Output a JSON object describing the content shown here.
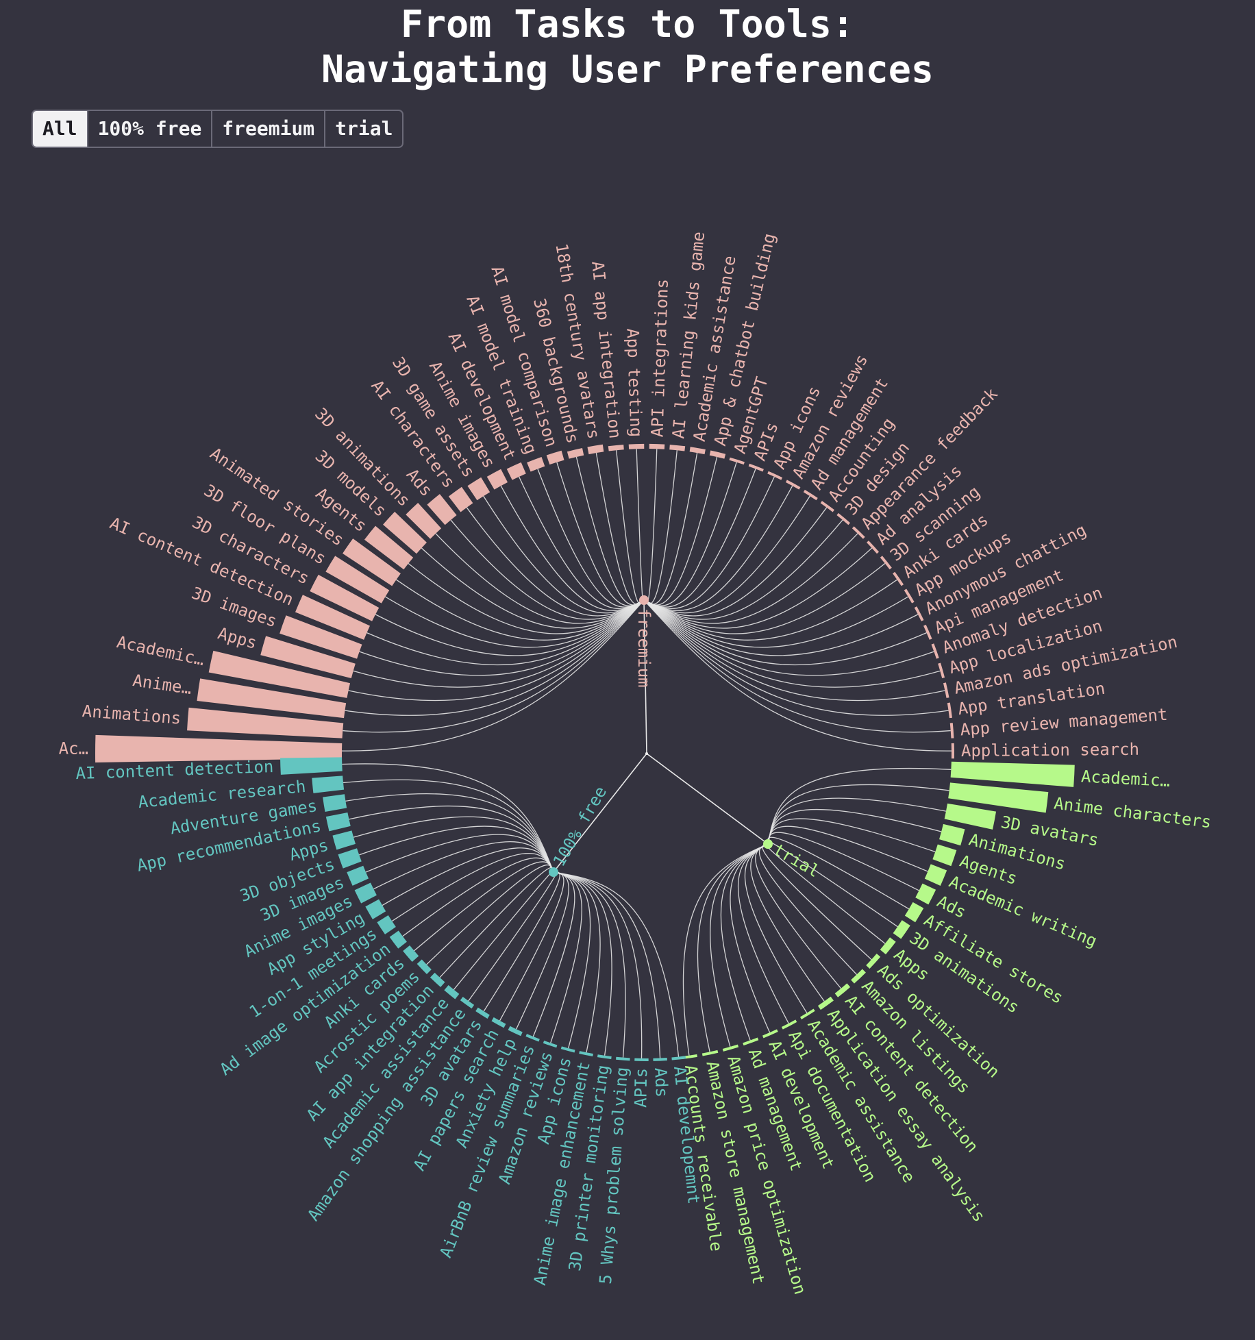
{
  "title_lines": [
    "From Tasks to Tools:",
    "Navigating User Preferences"
  ],
  "filters": [
    {
      "label": "All",
      "active": true
    },
    {
      "label": "100% free",
      "active": false
    },
    {
      "label": "freemium",
      "active": false
    },
    {
      "label": "trial",
      "active": false
    }
  ],
  "chart_data": {
    "type": "radial-tree-bar",
    "root": "",
    "groups": [
      {
        "name": "freemium",
        "color": "#e8b4ae",
        "leaves": [
          {
            "label": "Ac…",
            "value": 100
          },
          {
            "label": "Animations",
            "value": 63
          },
          {
            "label": "Anime…",
            "value": 60
          },
          {
            "label": "Academic…",
            "value": 57
          },
          {
            "label": "Apps",
            "value": 38
          },
          {
            "label": "3D images",
            "value": 33
          },
          {
            "label": "AI content detection",
            "value": 30
          },
          {
            "label": "3D characters",
            "value": 28
          },
          {
            "label": "3D floor plans",
            "value": 26
          },
          {
            "label": "Animated stories",
            "value": 24
          },
          {
            "label": "Agents",
            "value": 20
          },
          {
            "label": "3D models",
            "value": 18
          },
          {
            "label": "3D animations",
            "value": 14
          },
          {
            "label": "Ads",
            "value": 11
          },
          {
            "label": "AI characters",
            "value": 8
          },
          {
            "label": "3D game assets",
            "value": 7
          },
          {
            "label": "Anime images",
            "value": 6
          },
          {
            "label": "AI development",
            "value": 5
          },
          {
            "label": "AI model training",
            "value": 4
          },
          {
            "label": "AI model comparison",
            "value": 4
          },
          {
            "label": "360 backgrounds",
            "value": 3
          },
          {
            "label": "18th century avatars",
            "value": 3
          },
          {
            "label": "AI app integration",
            "value": 2
          },
          {
            "label": "App testing",
            "value": 2
          },
          {
            "label": "API integrations",
            "value": 2
          },
          {
            "label": "AI learning kids game",
            "value": 2
          },
          {
            "label": "Academic assistance",
            "value": 2
          },
          {
            "label": "App & chatbot building",
            "value": 2
          },
          {
            "label": "AgentGPT",
            "value": 1
          },
          {
            "label": "APIs",
            "value": 1
          },
          {
            "label": "App icons",
            "value": 1
          },
          {
            "label": "Amazon reviews",
            "value": 1
          },
          {
            "label": "Ad management",
            "value": 1
          },
          {
            "label": "Accounting",
            "value": 1
          },
          {
            "label": "3D design",
            "value": 1
          },
          {
            "label": "Appearance feedback",
            "value": 1
          },
          {
            "label": "Ad analysis",
            "value": 1
          },
          {
            "label": "3D scanning",
            "value": 1
          },
          {
            "label": "Anki cards",
            "value": 1
          },
          {
            "label": "App mockups",
            "value": 1
          },
          {
            "label": "Anonymous chatting",
            "value": 1
          },
          {
            "label": "Api management",
            "value": 1
          },
          {
            "label": "Anomaly detection",
            "value": 1
          },
          {
            "label": "App localization",
            "value": 1
          },
          {
            "label": "Amazon ads optimization",
            "value": 1
          },
          {
            "label": "App translation",
            "value": 1
          },
          {
            "label": "App review management",
            "value": 1
          },
          {
            "label": "Application search",
            "value": 1
          }
        ]
      },
      {
        "name": "trial",
        "color": "#b6f98a",
        "leaves": [
          {
            "label": "Academic…",
            "value": 50
          },
          {
            "label": "Anime characters",
            "value": 40
          },
          {
            "label": "3D avatars",
            "value": 20
          },
          {
            "label": "Animations",
            "value": 9
          },
          {
            "label": "Agents",
            "value": 8
          },
          {
            "label": "Academic writing",
            "value": 7
          },
          {
            "label": "Ads",
            "value": 6
          },
          {
            "label": "Affiliate stores",
            "value": 5
          },
          {
            "label": "3D animations",
            "value": 4
          },
          {
            "label": "Apps",
            "value": 3
          },
          {
            "label": "Ads optimization",
            "value": 2
          },
          {
            "label": "Amazon listings",
            "value": 2
          },
          {
            "label": "AI content detection",
            "value": 2
          },
          {
            "label": "Application essay analysis",
            "value": 2
          },
          {
            "label": "Academic assistance",
            "value": 1
          },
          {
            "label": "Api documentation",
            "value": 1
          },
          {
            "label": "AI development",
            "value": 1
          },
          {
            "label": "Ad management",
            "value": 1
          },
          {
            "label": "Amazon price optimization",
            "value": 1
          },
          {
            "label": "Amazon store management",
            "value": 1
          },
          {
            "label": "Accounts receivable",
            "value": 1
          }
        ]
      },
      {
        "name": "100% free",
        "color": "#63c5c0",
        "leaves": [
          {
            "label": "AI content detection",
            "value": 28
          },
          {
            "label": "Academic research",
            "value": 14
          },
          {
            "label": "Adventure games",
            "value": 10
          },
          {
            "label": "App recommendations",
            "value": 10
          },
          {
            "label": "Apps",
            "value": 9
          },
          {
            "label": "3D objects",
            "value": 9
          },
          {
            "label": "3D images",
            "value": 8
          },
          {
            "label": "Anime images",
            "value": 8
          },
          {
            "label": "App styling",
            "value": 7
          },
          {
            "label": "1-on-1 meetings",
            "value": 6
          },
          {
            "label": "Ad image optimization",
            "value": 5
          },
          {
            "label": "Anki cards",
            "value": 4
          },
          {
            "label": "Acrostic poems",
            "value": 3
          },
          {
            "label": "AI app integration",
            "value": 3
          },
          {
            "label": "Academic assistance",
            "value": 3
          },
          {
            "label": "Amazon shopping assistance",
            "value": 2
          },
          {
            "label": "3D avatars",
            "value": 2
          },
          {
            "label": "AI papers search",
            "value": 2
          },
          {
            "label": "Anxiety help",
            "value": 2
          },
          {
            "label": "AirBnB review summaries",
            "value": 1
          },
          {
            "label": "Amazon reviews",
            "value": 1
          },
          {
            "label": "App icons",
            "value": 1
          },
          {
            "label": "Anime image enhancement",
            "value": 1
          },
          {
            "label": "3D printer monitoring",
            "value": 1
          },
          {
            "label": "5 Whys problem solving",
            "value": 1
          },
          {
            "label": "APIs",
            "value": 1
          },
          {
            "label": "Ads",
            "value": 1
          },
          {
            "label": "AI developemnt",
            "value": 1
          }
        ]
      }
    ]
  }
}
